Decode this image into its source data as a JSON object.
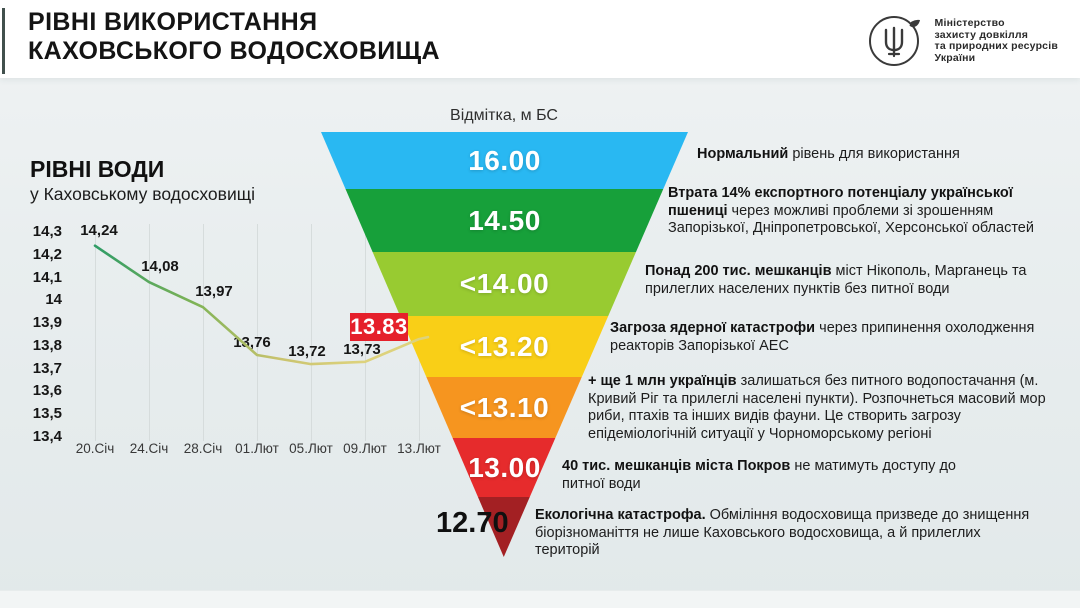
{
  "header": {
    "title_lines": [
      "РІВНІ ВИКОРИСТАННЯ",
      "КАХОВСЬКОГО ВОДОСХОВИЩА"
    ],
    "ministry_lines": [
      "Міністерство",
      "захисту довкілля",
      "та природних ресурсів",
      "України"
    ]
  },
  "chart_section": {
    "title": "РІВНІ ВОДИ",
    "subtitle": "у Каховському водосховищі"
  },
  "chart_data": [
    {
      "type": "line",
      "title": "РІВНІ ВОДИ у Каховському водосховищі",
      "x": [
        "20.Січ",
        "24.Січ",
        "28.Січ",
        "01.Лют",
        "05.Лют",
        "09.Лют",
        "13.Лют"
      ],
      "values": [
        14.24,
        14.08,
        13.97,
        13.76,
        13.72,
        13.73,
        13.83
      ],
      "point_labels": [
        "14,24",
        "14,08",
        "13,97",
        "13,76",
        "13,72",
        "13,73",
        "13.83"
      ],
      "highlight": {
        "index": 6,
        "label": "13.83",
        "box_color": "#e5202b",
        "text_color": "#ffffff"
      },
      "ylim": [
        13.4,
        14.3
      ],
      "ytick_labels": [
        "14,3",
        "14,2",
        "14,1",
        "14",
        "13,9",
        "13,8",
        "13,7",
        "13,6",
        "13,5",
        "13,4"
      ],
      "grid": "vertical-only",
      "line_gradient": [
        "#2f9c66",
        "#7fb356",
        "#c9c36e",
        "#ddd27d"
      ]
    },
    {
      "type": "funnel",
      "title": "Відмітка, м БС",
      "labels": [
        "16.00",
        "14.50",
        "<14.00",
        "<13.20",
        "<13.10",
        "13.00",
        "12.70"
      ],
      "colors": [
        "#29b8f2",
        "#17a03a",
        "#98cb31",
        "#f9cf17",
        "#f6951f",
        "#e62b2c",
        "#a32023"
      ],
      "notes": [
        {
          "bold": "Нормальний",
          "text": " рівень для використання"
        },
        {
          "bold": "Втрата 14% експортного потенціалу української пшениці",
          "text": " через можливі проблеми зі зрошенням Запорізької, Дніпропетровської, Херсонської областей"
        },
        {
          "bold": "Понад 200 тис. мешканців",
          "text": " міст Нікополь, Марганець та прилеглих населених пунктів без питної води"
        },
        {
          "bold": "Загроза ядерної катастрофи",
          "text": " через припинення охолодження реакторів Запорізької АЕС"
        },
        {
          "bold": "+ ще 1 млн українців",
          "text": " залишаться без питного водопостачання (м. Кривий Ріг та прилеглі населені пункти). Розпочнеться масовий мор риби, птахів та інших видів фауни. Це створить загрозу епідеміологічній ситуації у Чорноморському регіоні"
        },
        {
          "bold": "40 тис. мешканців міста Покров",
          "text": " не матимуть доступу до питної води"
        },
        {
          "bold": "Екологічна катастрофа.",
          "text": " Обміління водосховища призведе до знищення біорізноманіття не лише Каховського водосховища, а й прилеглих територій"
        }
      ]
    }
  ]
}
